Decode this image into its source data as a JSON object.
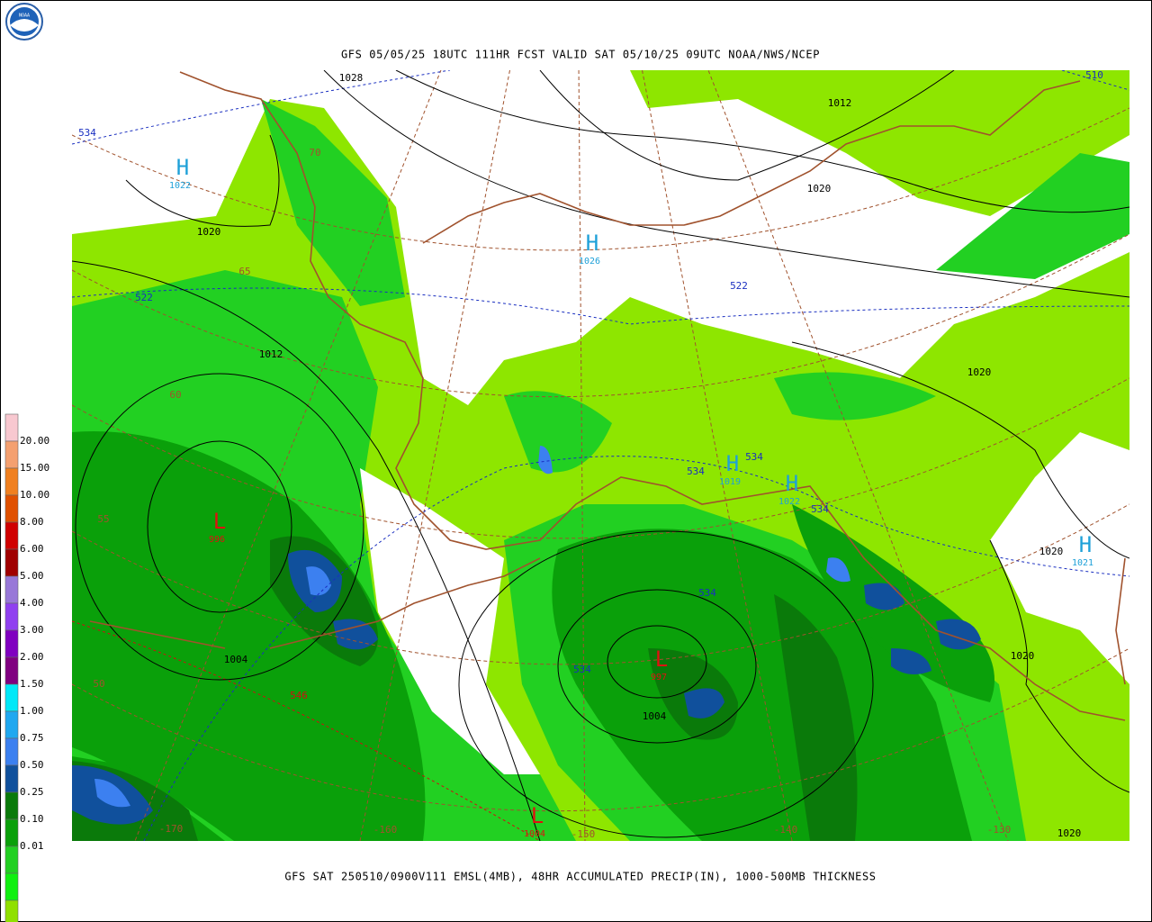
{
  "header": {
    "logo": "NOAA",
    "title": "GFS 05/05/25 18UTC 111HR FCST VALID SAT 05/10/25 09UTC NOAA/NWS/NCEP"
  },
  "footer": {
    "caption": "GFS SAT 250510/0900V111 EMSL(4MB), 48HR ACCUMULATED PRECIP(IN), 1000-500MB THICKNESS"
  },
  "legend": {
    "labels": [
      "20.00",
      "15.00",
      "10.00",
      "8.00",
      "6.00",
      "5.00",
      "4.00",
      "3.00",
      "2.00",
      "1.50",
      "1.00",
      "0.75",
      "0.50",
      "0.25",
      "0.10",
      "0.01"
    ],
    "colors": [
      "#f8c8d0",
      "#f4a070",
      "#f08020",
      "#e05000",
      "#d00000",
      "#a00000",
      "#9878d8",
      "#9040f0",
      "#8000c0",
      "#800080",
      "#00e8f8",
      "#20a8f0",
      "#3c80f0",
      "#10509c",
      "#0a7a0a",
      "#0aa00a",
      "#22d022",
      "#10f010",
      "#90e000",
      "#ffffff"
    ]
  },
  "map": {
    "contour_labels": [
      {
        "text": "1028",
        "color": "#000000"
      },
      {
        "text": "1012",
        "color": "#000000"
      },
      {
        "text": "1020",
        "color": "#000000"
      },
      {
        "text": "1020",
        "color": "#000000"
      },
      {
        "text": "1012",
        "color": "#000000"
      },
      {
        "text": "1020",
        "color": "#000000"
      },
      {
        "text": "1020",
        "color": "#000000"
      },
      {
        "text": "1020",
        "color": "#000000"
      },
      {
        "text": "1004",
        "color": "#000000"
      },
      {
        "text": "1004",
        "color": "#000000"
      },
      {
        "text": "1020",
        "color": "#000000"
      },
      {
        "text": "534",
        "color": "#1a2fc0"
      },
      {
        "text": "522",
        "color": "#1a2fc0"
      },
      {
        "text": "522",
        "color": "#1a2fc0"
      },
      {
        "text": "534",
        "color": "#1a2fc0"
      },
      {
        "text": "534",
        "color": "#1a2fc0"
      },
      {
        "text": "534",
        "color": "#1a2fc0"
      },
      {
        "text": "534",
        "color": "#1a2fc0"
      },
      {
        "text": "534",
        "color": "#1a2fc0"
      },
      {
        "text": "510",
        "color": "#1a2fc0"
      },
      {
        "text": "546",
        "color": "#d01010"
      },
      {
        "text": "70",
        "color": "#a0522d"
      },
      {
        "text": "65",
        "color": "#a0522d"
      },
      {
        "text": "60",
        "color": "#a0522d"
      },
      {
        "text": "55",
        "color": "#a0522d"
      },
      {
        "text": "50",
        "color": "#a0522d"
      },
      {
        "text": "-170",
        "color": "#a0522d"
      },
      {
        "text": "-160",
        "color": "#a0522d"
      },
      {
        "text": "-150",
        "color": "#a0522d"
      },
      {
        "text": "-140",
        "color": "#a0522d"
      },
      {
        "text": "-130",
        "color": "#a0522d"
      }
    ],
    "centers": [
      {
        "letter": "H",
        "value": "1022",
        "color": "#1ea0d8"
      },
      {
        "letter": "H",
        "value": "1026",
        "color": "#1ea0d8"
      },
      {
        "letter": "H",
        "value": "1019",
        "color": "#1ea0d8"
      },
      {
        "letter": "H",
        "value": "1022",
        "color": "#1ea0d8"
      },
      {
        "letter": "H",
        "value": "1021",
        "color": "#1ea0d8"
      },
      {
        "letter": "L",
        "value": "996",
        "color": "#e01010"
      },
      {
        "letter": "L",
        "value": "997",
        "color": "#e01010"
      },
      {
        "letter": "L",
        "value": "1004",
        "color": "#e01010"
      }
    ]
  }
}
